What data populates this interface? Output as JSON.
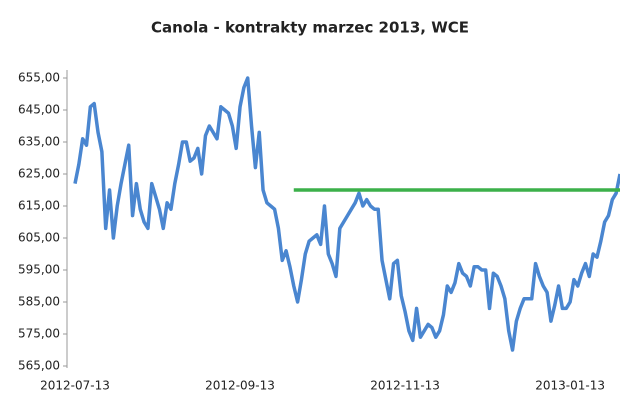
{
  "chart_data": {
    "type": "line",
    "title": "Canola - kontrakty marzec 2013, WCE",
    "categories": [
      "2012-07-13",
      null,
      null,
      null,
      null,
      null,
      null,
      null,
      null,
      null,
      null,
      null,
      null,
      null,
      null,
      null,
      null,
      null,
      null,
      null,
      null,
      null,
      null,
      null,
      null,
      null,
      null,
      null,
      null,
      null,
      null,
      null,
      null,
      null,
      null,
      null,
      null,
      null,
      null,
      null,
      null,
      null,
      null,
      "2012-09-13",
      null,
      null,
      null,
      null,
      null,
      null,
      null,
      null,
      null,
      null,
      null,
      null,
      null,
      null,
      null,
      null,
      null,
      null,
      null,
      null,
      null,
      null,
      null,
      null,
      null,
      null,
      null,
      null,
      null,
      null,
      null,
      null,
      null,
      null,
      null,
      null,
      null,
      null,
      null,
      null,
      null,
      null,
      "2012-11-13",
      null,
      null,
      null,
      null,
      null,
      null,
      null,
      null,
      null,
      null,
      null,
      null,
      null,
      null,
      null,
      null,
      null,
      null,
      null,
      null,
      null,
      null,
      null,
      null,
      null,
      null,
      null,
      null,
      null,
      null,
      null,
      null,
      null,
      null,
      null,
      null,
      null,
      null,
      null,
      null,
      null,
      null,
      "2013-01-13",
      null,
      null,
      null,
      null,
      null,
      null,
      null,
      null,
      null,
      null,
      null,
      null,
      null
    ],
    "series": [
      {
        "color": "#4a86d0",
        "values": [
          622,
          628,
          636,
          634,
          646,
          647,
          638,
          632,
          608,
          620,
          605,
          615,
          622,
          628,
          634,
          612,
          622,
          614,
          610,
          608,
          622,
          618,
          614,
          608,
          616,
          614,
          622,
          628,
          635,
          635,
          629,
          630,
          633,
          625,
          637,
          640,
          638,
          636,
          646,
          645,
          644,
          640,
          633,
          646,
          652,
          655,
          640,
          627,
          638,
          620,
          616,
          615,
          614,
          608,
          598,
          601,
          596,
          590,
          585,
          592,
          600,
          604,
          605,
          606,
          603,
          615,
          600,
          597,
          593,
          608,
          610,
          612,
          614,
          616,
          619,
          615,
          617,
          615,
          614,
          614,
          598,
          592,
          586,
          597,
          598,
          587,
          582,
          576,
          573,
          583,
          574,
          576,
          578,
          577,
          574,
          576,
          581,
          590,
          588,
          591,
          597,
          594,
          593,
          590,
          596,
          596,
          595,
          595,
          583,
          594,
          593,
          590,
          586,
          576,
          570,
          579,
          583,
          586,
          586,
          586,
          597,
          593,
          590,
          588,
          579,
          584,
          590,
          583,
          583,
          585,
          592,
          590,
          594,
          597,
          593,
          600,
          599,
          604,
          610,
          612,
          617,
          619,
          625
        ]
      },
      {
        "color": "#3cb04a",
        "values": [
          null,
          null,
          null,
          null,
          null,
          null,
          null,
          null,
          null,
          null,
          null,
          null,
          null,
          null,
          null,
          null,
          null,
          null,
          null,
          null,
          null,
          null,
          null,
          null,
          null,
          null,
          null,
          null,
          null,
          null,
          null,
          null,
          null,
          null,
          null,
          null,
          null,
          null,
          null,
          null,
          null,
          null,
          null,
          null,
          null,
          null,
          null,
          null,
          null,
          null,
          null,
          null,
          null,
          null,
          null,
          null,
          null,
          620,
          620,
          620,
          620,
          620,
          620,
          620,
          620,
          620,
          620,
          620,
          620,
          620,
          620,
          620,
          620,
          620,
          620,
          620,
          620,
          620,
          620,
          620,
          620,
          620,
          620,
          620,
          620,
          620,
          620,
          620,
          620,
          620,
          620,
          620,
          620,
          620,
          620,
          620,
          620,
          620,
          620,
          620,
          620,
          620,
          620,
          620,
          620,
          620,
          620,
          620,
          620,
          620,
          620,
          620,
          620,
          620,
          620,
          620,
          620,
          620,
          620,
          620,
          620,
          620,
          620,
          620,
          620,
          620,
          620,
          620,
          620,
          620,
          620,
          620,
          620,
          620,
          620,
          620,
          620,
          620,
          620,
          620,
          620,
          620,
          620
        ]
      }
    ],
    "ylim": [
      565,
      655
    ],
    "yticks": [
      {
        "value": 565,
        "label": "565,00"
      },
      {
        "value": 575,
        "label": "575,00"
      },
      {
        "value": 585,
        "label": "585,00"
      },
      {
        "value": 595,
        "label": "595,00"
      },
      {
        "value": 605,
        "label": "605,00"
      },
      {
        "value": 615,
        "label": "615,00"
      },
      {
        "value": 625,
        "label": "625,00"
      },
      {
        "value": 635,
        "label": "635,00"
      },
      {
        "value": 645,
        "label": "645,00"
      },
      {
        "value": 655,
        "label": "655,00"
      }
    ],
    "grid": false
  }
}
